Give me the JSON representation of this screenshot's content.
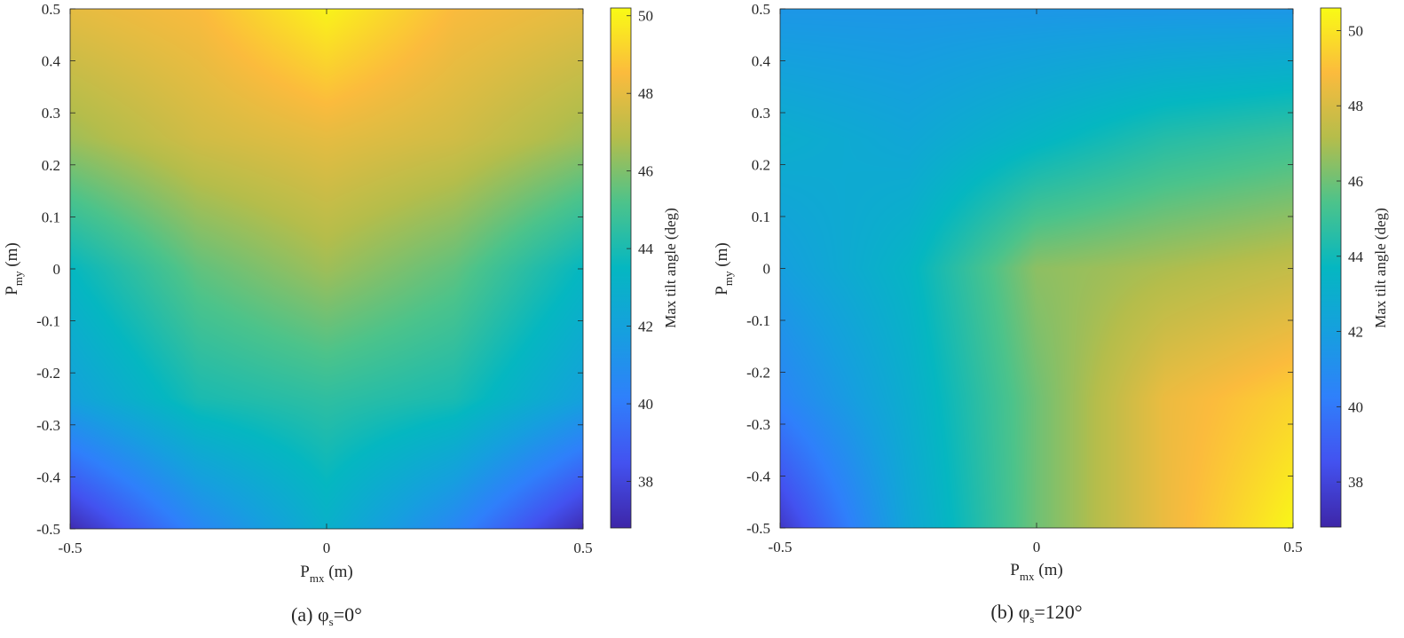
{
  "chart_data": [
    {
      "type": "heatmap",
      "caption": "(a) φs=0°",
      "caption_main": "(a) φ",
      "caption_sub": "s",
      "caption_tail": "=0°",
      "xlabel_main": "P",
      "xlabel_sub": "mx",
      "xlabel_tail": " (m)",
      "ylabel_main": "P",
      "ylabel_sub": "my",
      "ylabel_tail": " (m)",
      "xlim": [
        -0.5,
        0.5
      ],
      "ylim": [
        -0.5,
        0.5
      ],
      "x_ticks": [
        "-0.5",
        "0",
        "0.5"
      ],
      "y_ticks": [
        "-0.5",
        "-0.4",
        "-0.3",
        "-0.2",
        "-0.1",
        "0",
        "0.1",
        "0.2",
        "0.3",
        "0.4",
        "0.5"
      ],
      "colorbar_label": "Max tilt angle (deg)",
      "colorbar_ticks": [
        "38",
        "40",
        "42",
        "44",
        "46",
        "48",
        "50"
      ],
      "clim": [
        36.8,
        50.2
      ],
      "grid_x": [
        -0.5,
        -0.25,
        0,
        0.25,
        0.5
      ],
      "grid_y": [
        -0.5,
        -0.25,
        0,
        0.25,
        0.5
      ],
      "values": [
        [
          37.0,
          42.0,
          43.5,
          46.5,
          48.0
        ],
        [
          40.5,
          44.0,
          45.5,
          47.5,
          48.5
        ],
        [
          43.0,
          44.5,
          46.5,
          48.0,
          50.0
        ],
        [
          40.5,
          44.0,
          45.5,
          47.5,
          48.5
        ],
        [
          37.0,
          42.0,
          43.5,
          46.5,
          48.0
        ]
      ]
    },
    {
      "type": "heatmap",
      "caption": "(b) φs=120°",
      "caption_main": "(b) φ",
      "caption_sub": "s",
      "caption_tail": "=120°",
      "xlabel_main": "P",
      "xlabel_sub": "mx",
      "xlabel_tail": " (m)",
      "ylabel_main": "P",
      "ylabel_sub": "my",
      "ylabel_tail": " (m)",
      "xlim": [
        -0.5,
        0.5
      ],
      "ylim": [
        -0.5,
        0.5
      ],
      "x_ticks": [
        "-0.5",
        "0",
        "0.5"
      ],
      "y_ticks": [
        "-0.5",
        "-0.4",
        "-0.3",
        "-0.2",
        "-0.1",
        "0",
        "0.1",
        "0.2",
        "0.3",
        "0.4",
        "0.5"
      ],
      "colorbar_label": "Max tilt angle (deg)",
      "colorbar_ticks": [
        "38",
        "40",
        "42",
        "44",
        "46",
        "48",
        "50"
      ],
      "clim": [
        36.8,
        50.6
      ],
      "grid_x": [
        -0.5,
        -0.25,
        0,
        0.25,
        0.5
      ],
      "grid_y": [
        -0.5,
        -0.25,
        0,
        0.25,
        0.5
      ],
      "values": [
        [
          37.5,
          40.5,
          42.0,
          43.0,
          41.5
        ],
        [
          42.5,
          43.0,
          43.5,
          42.5,
          41.5
        ],
        [
          46.0,
          46.0,
          46.5,
          43.5,
          41.5
        ],
        [
          48.5,
          48.5,
          47.0,
          44.5,
          41.5
        ],
        [
          50.5,
          49.5,
          47.5,
          45.0,
          41.5
        ]
      ]
    }
  ]
}
